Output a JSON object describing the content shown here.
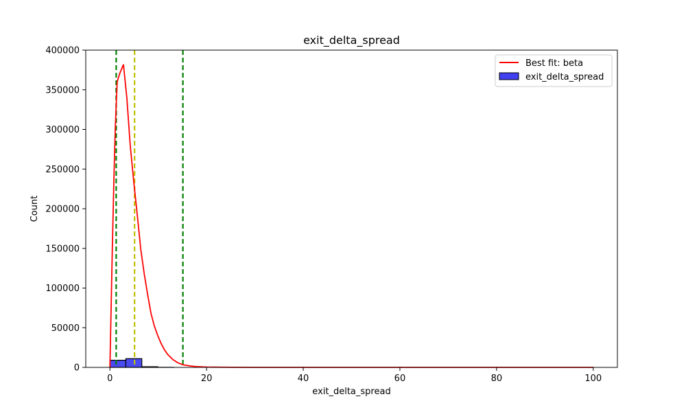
{
  "chart_data": {
    "type": "histogram",
    "title": "exit_delta_spread",
    "xlabel": "exit_delta_spread",
    "ylabel": "Count",
    "xlim": [
      -5,
      105
    ],
    "ylim": [
      0,
      400000
    ],
    "xticks": [
      0,
      20,
      40,
      60,
      80,
      100
    ],
    "yticks": [
      0,
      50000,
      100000,
      150000,
      200000,
      250000,
      300000,
      350000,
      400000
    ],
    "grid": false,
    "legend_position": "upper right",
    "bars": {
      "name": "exit_delta_spread",
      "color": "#4040f0",
      "edgecolor": "#000000",
      "bins": [
        {
          "x0": 0,
          "x1": 3.3,
          "count": 9000
        },
        {
          "x0": 3.3,
          "x1": 6.6,
          "count": 11000
        },
        {
          "x0": 6.6,
          "x1": 9.9,
          "count": 800
        },
        {
          "x0": 9.9,
          "x1": 13.2,
          "count": 100
        }
      ]
    },
    "fit_line": {
      "name": "Best fit: beta",
      "color": "#ff0000",
      "points": [
        [
          0,
          0
        ],
        [
          0.2,
          60000
        ],
        [
          0.5,
          150000
        ],
        [
          0.8,
          230000
        ],
        [
          1.1,
          300000
        ],
        [
          1.5,
          360000
        ],
        [
          2.0,
          370000
        ],
        [
          2.8,
          382000
        ],
        [
          3.5,
          340000
        ],
        [
          4.2,
          280000
        ],
        [
          5.0,
          230000
        ],
        [
          5.7,
          190000
        ],
        [
          6.4,
          148000
        ],
        [
          7.1,
          118000
        ],
        [
          7.8,
          92000
        ],
        [
          8.5,
          68000
        ],
        [
          9.2,
          52000
        ],
        [
          9.9,
          40000
        ],
        [
          10.6,
          30000
        ],
        [
          11.3,
          22000
        ],
        [
          12.0,
          16000
        ],
        [
          13.0,
          10000
        ],
        [
          14.0,
          6000
        ],
        [
          15.0,
          3500
        ],
        [
          16.5,
          1800
        ],
        [
          18.0,
          900
        ],
        [
          20.0,
          400
        ],
        [
          25.0,
          100
        ],
        [
          30.0,
          20
        ],
        [
          40.0,
          0
        ],
        [
          100.0,
          0
        ]
      ]
    },
    "vlines": [
      {
        "x": 1.3,
        "color": "#008000"
      },
      {
        "x": 5.1,
        "color": "#bfbf00"
      },
      {
        "x": 15.1,
        "color": "#008000"
      }
    ]
  }
}
